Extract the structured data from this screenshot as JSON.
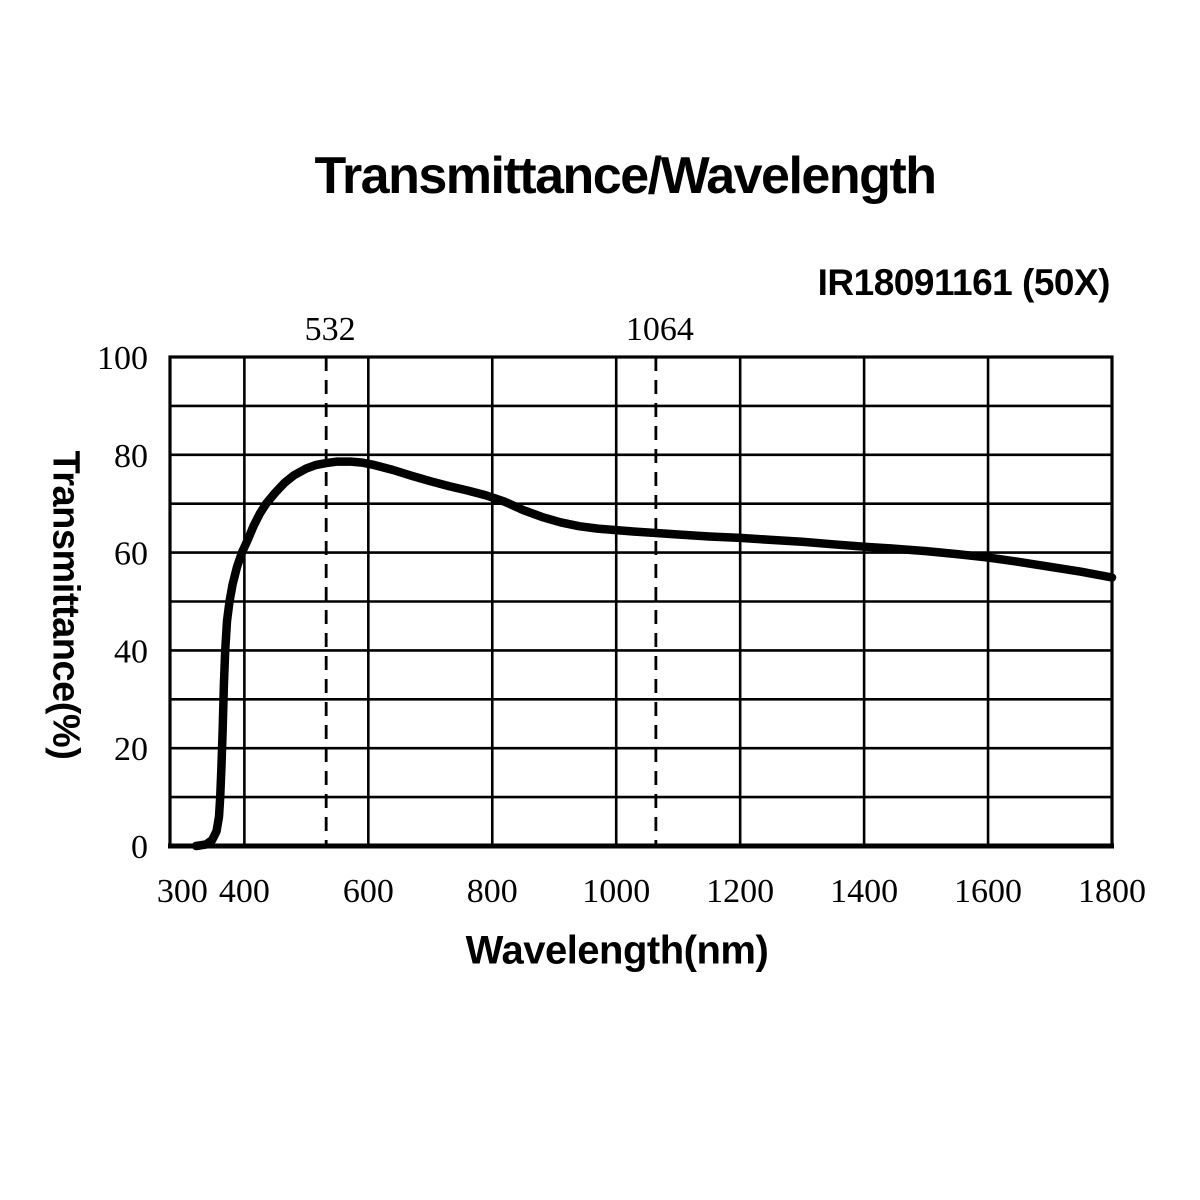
{
  "title": "Transmittance/Wavelength",
  "annotation": "IR18091161 (50X)",
  "colors": {
    "background": "#ffffff",
    "ink": "#000000"
  },
  "chart_data": {
    "type": "line",
    "title": "Transmittance/Wavelength",
    "xlabel": "Wavelength(nm)",
    "ylabel": "Transmittance(%)",
    "xlim": [
      280,
      1800
    ],
    "ylim": [
      0,
      100
    ],
    "grid": true,
    "legend": "none",
    "x_tick_labels": [
      300,
      400,
      600,
      800,
      1000,
      1200,
      1400,
      1600,
      1800
    ],
    "y_tick_labels": [
      0,
      20,
      40,
      60,
      80,
      100
    ],
    "x_gridlines": [
      400,
      600,
      800,
      1000,
      1200,
      1400,
      1600
    ],
    "y_gridlines": [
      10,
      20,
      30,
      40,
      50,
      60,
      70,
      80,
      90
    ],
    "dashed_markers": [
      {
        "value": 532,
        "label": "532"
      },
      {
        "value": 1064,
        "label": "1064"
      }
    ],
    "series": [
      {
        "name": "transmittance",
        "color": "#000000",
        "points": [
          [
            322,
            0
          ],
          [
            338,
            0.3
          ],
          [
            348,
            1.2
          ],
          [
            355,
            3
          ],
          [
            359,
            6
          ],
          [
            361,
            10
          ],
          [
            363,
            16
          ],
          [
            365,
            24
          ],
          [
            367,
            33
          ],
          [
            369,
            40
          ],
          [
            372,
            46
          ],
          [
            376,
            50
          ],
          [
            381,
            53.5
          ],
          [
            388,
            57
          ],
          [
            396,
            60
          ],
          [
            405,
            62.5
          ],
          [
            415,
            65.5
          ],
          [
            425,
            68
          ],
          [
            435,
            70
          ],
          [
            450,
            72.3
          ],
          [
            465,
            74.3
          ],
          [
            480,
            75.8
          ],
          [
            500,
            77.2
          ],
          [
            515,
            77.9
          ],
          [
            532,
            78.3
          ],
          [
            550,
            78.6
          ],
          [
            572,
            78.6
          ],
          [
            590,
            78.4
          ],
          [
            610,
            77.9
          ],
          [
            640,
            76.9
          ],
          [
            670,
            75.7
          ],
          [
            700,
            74.6
          ],
          [
            730,
            73.6
          ],
          [
            760,
            72.7
          ],
          [
            790,
            71.7
          ],
          [
            820,
            70.4
          ],
          [
            850,
            68.7
          ],
          [
            880,
            67.3
          ],
          [
            910,
            66.2
          ],
          [
            940,
            65.4
          ],
          [
            970,
            64.9
          ],
          [
            1000,
            64.6
          ],
          [
            1030,
            64.3
          ],
          [
            1064,
            64.0
          ],
          [
            1100,
            63.7
          ],
          [
            1150,
            63.3
          ],
          [
            1200,
            63.0
          ],
          [
            1250,
            62.6
          ],
          [
            1300,
            62.2
          ],
          [
            1350,
            61.7
          ],
          [
            1400,
            61.2
          ],
          [
            1450,
            60.8
          ],
          [
            1500,
            60.3
          ],
          [
            1550,
            59.7
          ],
          [
            1600,
            59.0
          ],
          [
            1650,
            58.1
          ],
          [
            1700,
            57.1
          ],
          [
            1750,
            56.1
          ],
          [
            1800,
            54.9
          ]
        ]
      }
    ]
  }
}
